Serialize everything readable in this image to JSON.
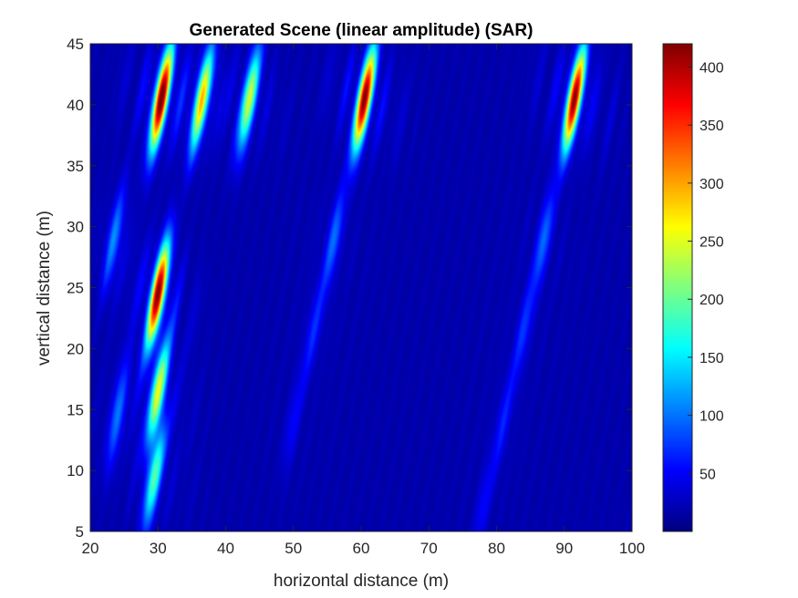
{
  "chart_data": {
    "type": "heatmap",
    "title": "Generated Scene (linear amplitude) (SAR)",
    "xlabel": "horizontal distance (m)",
    "ylabel": "vertical distance (m)",
    "xlim": [
      20,
      100
    ],
    "ylim": [
      5,
      45
    ],
    "xticks": [
      20,
      30,
      40,
      50,
      60,
      70,
      80,
      90,
      100
    ],
    "yticks": [
      5,
      10,
      15,
      20,
      25,
      30,
      35,
      40,
      45
    ],
    "colormap": "jet",
    "grid": false,
    "colorbar": {
      "range": [
        0,
        420
      ],
      "ticks": [
        50,
        100,
        150,
        200,
        250,
        300,
        350,
        400
      ],
      "placement": "right"
    },
    "peaks": [
      {
        "x": 30.5,
        "y": 40.5,
        "amplitude": 420
      },
      {
        "x": 36.5,
        "y": 40.5,
        "amplitude": 260
      },
      {
        "x": 43.5,
        "y": 40.5,
        "amplitude": 230
      },
      {
        "x": 60.5,
        "y": 40.5,
        "amplitude": 410
      },
      {
        "x": 91.5,
        "y": 40.5,
        "amplitude": 400
      },
      {
        "x": 30.0,
        "y": 24.5,
        "amplitude": 410
      },
      {
        "x": 30.0,
        "y": 16.5,
        "amplitude": 240
      },
      {
        "x": 29.5,
        "y": 9.5,
        "amplitude": 180
      },
      {
        "x": 23.5,
        "y": 29.0,
        "amplitude": 90
      },
      {
        "x": 24.0,
        "y": 14.5,
        "amplitude": 80
      },
      {
        "x": 56.0,
        "y": 29.0,
        "amplitude": 80
      },
      {
        "x": 53.0,
        "y": 21.5,
        "amplitude": 50
      },
      {
        "x": 50.0,
        "y": 14.0,
        "amplitude": 35
      },
      {
        "x": 87.0,
        "y": 29.0,
        "amplitude": 80
      },
      {
        "x": 84.0,
        "y": 21.5,
        "amplitude": 55
      },
      {
        "x": 81.0,
        "y": 14.0,
        "amplitude": 45
      },
      {
        "x": 78.0,
        "y": 7.0,
        "amplitude": 35
      }
    ]
  }
}
